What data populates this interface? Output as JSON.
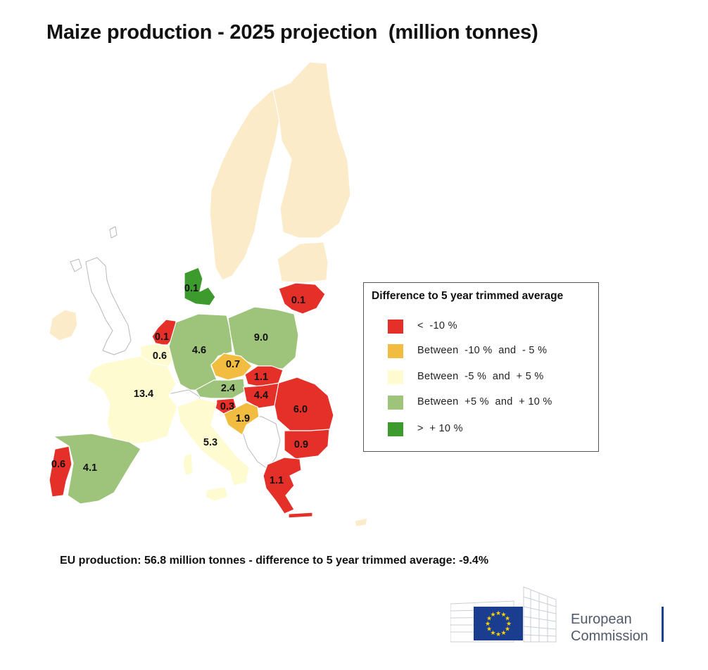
{
  "title": "Maize production - 2025 projection  (million tonnes)",
  "footer": "EU production: 56.8 million tonnes - difference to 5 year trimmed average: -9.4%",
  "legend": {
    "title": "Difference to 5 year trimmed average",
    "items": [
      {
        "label": "<  -10 %",
        "color": "#e5302a"
      },
      {
        "label": "Between  -10 %  and  - 5 %",
        "color": "#f1bc40"
      },
      {
        "label": "Between  -5 %  and  + 5 %",
        "color": "#fdfbcf"
      },
      {
        "label": "Between  +5 %  and  + 10 %",
        "color": "#9dc47a"
      },
      {
        "label": ">  + 10 %",
        "color": "#3d9a2c"
      }
    ]
  },
  "countries": [
    {
      "name": "Denmark",
      "value": "0.1",
      "category": 4
    },
    {
      "name": "Lithuania",
      "value": "0.1",
      "category": 0
    },
    {
      "name": "Netherlands",
      "value": "0.1",
      "category": 0
    },
    {
      "name": "Belgium",
      "value": "0.6",
      "category": 2
    },
    {
      "name": "Germany",
      "value": "4.6",
      "category": 3
    },
    {
      "name": "Poland",
      "value": "9.0",
      "category": 3
    },
    {
      "name": "Czechia",
      "value": "0.7",
      "category": 1
    },
    {
      "name": "Slovakia",
      "value": "1.1",
      "category": 0
    },
    {
      "name": "Austria",
      "value": "2.4",
      "category": 3
    },
    {
      "name": "Hungary",
      "value": "4.4",
      "category": 0
    },
    {
      "name": "France",
      "value": "13.4",
      "category": 2
    },
    {
      "name": "Slovenia",
      "value": "0.3",
      "category": 0
    },
    {
      "name": "Croatia",
      "value": "1.9",
      "category": 1
    },
    {
      "name": "Romania",
      "value": "6.0",
      "category": 0
    },
    {
      "name": "Bulgaria",
      "value": "0.9",
      "category": 0
    },
    {
      "name": "Italy",
      "value": "5.3",
      "category": 2
    },
    {
      "name": "Portugal",
      "value": "0.6",
      "category": 0
    },
    {
      "name": "Spain",
      "value": "4.1",
      "category": 3
    },
    {
      "name": "Greece",
      "value": "1.1",
      "category": 0
    }
  ],
  "logo": {
    "line1": "European",
    "line2": "Commission",
    "flag_color": "#1a3d8f",
    "star_color": "#ffd200"
  }
}
